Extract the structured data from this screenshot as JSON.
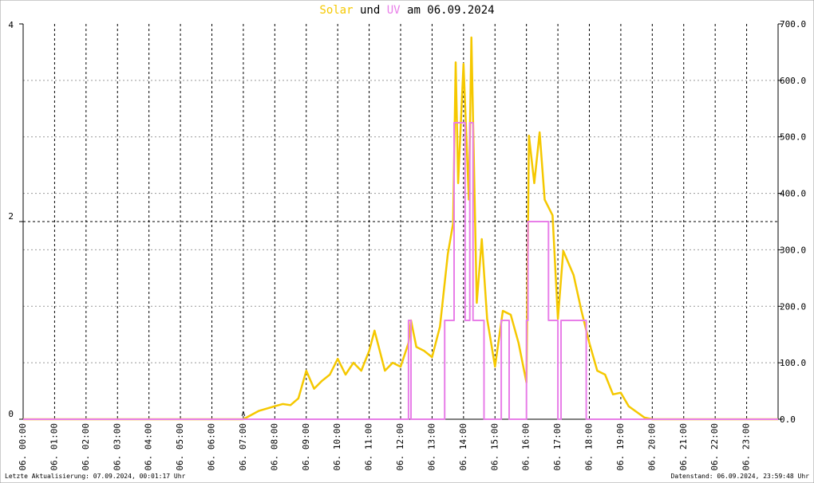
{
  "chart_data": {
    "type": "line",
    "title_conjunction": "und",
    "title_date": "am 06.09.2024",
    "xlim": [
      0,
      24
    ],
    "xticks": [
      {
        "value": 0,
        "label": "06. 00:00"
      },
      {
        "value": 1,
        "label": "06. 01:00"
      },
      {
        "value": 2,
        "label": "06. 02:00"
      },
      {
        "value": 3,
        "label": "06. 03:00"
      },
      {
        "value": 4,
        "label": "06. 04:00"
      },
      {
        "value": 5,
        "label": "06. 05:00"
      },
      {
        "value": 6,
        "label": "06. 06:00"
      },
      {
        "value": 7,
        "label": "06. 07:00"
      },
      {
        "value": 8,
        "label": "06. 08:00"
      },
      {
        "value": 9,
        "label": "06. 09:00"
      },
      {
        "value": 10,
        "label": "06. 10:00"
      },
      {
        "value": 11,
        "label": "06. 11:00"
      },
      {
        "value": 12,
        "label": "06. 12:00"
      },
      {
        "value": 13,
        "label": "06. 13:00"
      },
      {
        "value": 14,
        "label": "06. 14:00"
      },
      {
        "value": 15,
        "label": "06. 15:00"
      },
      {
        "value": 16,
        "label": "06. 16:00"
      },
      {
        "value": 17,
        "label": "06. 17:00"
      },
      {
        "value": 18,
        "label": "06. 18:00"
      },
      {
        "value": 19,
        "label": "06. 19:00"
      },
      {
        "value": 20,
        "label": "06. 20:00"
      },
      {
        "value": 21,
        "label": "06. 21:00"
      },
      {
        "value": 22,
        "label": "06. 22:00"
      },
      {
        "value": 23,
        "label": "06. 23:00"
      }
    ],
    "ylim": [
      0,
      4
    ],
    "yticks": [
      0,
      2,
      4
    ],
    "y2lim": [
      0,
      700
    ],
    "y2ticks": [
      {
        "value": 0,
        "label": "0.0"
      },
      {
        "value": 100,
        "label": "100.0"
      },
      {
        "value": 200,
        "label": "200.0"
      },
      {
        "value": 300,
        "label": "300.0"
      },
      {
        "value": 400,
        "label": "400.0"
      },
      {
        "value": 500,
        "label": "500.0"
      },
      {
        "value": 600,
        "label": "600.0"
      },
      {
        "value": 700,
        "label": "700.0"
      }
    ],
    "grid": true,
    "annotations": [
      {
        "text": "A",
        "x": 7
      }
    ],
    "series": [
      {
        "name": "Solar",
        "color": "#f5c800",
        "axis": "y2",
        "x": [
          0,
          7.0,
          7.5,
          8.0,
          8.25,
          8.5,
          8.75,
          9.0,
          9.25,
          9.5,
          9.75,
          10.0,
          10.25,
          10.5,
          10.75,
          11.0,
          11.17,
          11.5,
          11.75,
          12.0,
          12.25,
          12.33,
          12.5,
          12.75,
          13.0,
          13.25,
          13.5,
          13.67,
          13.75,
          13.83,
          14.0,
          14.17,
          14.25,
          14.42,
          14.58,
          14.75,
          15.0,
          15.25,
          15.5,
          15.75,
          16.0,
          16.08,
          16.25,
          16.42,
          16.58,
          16.83,
          17.0,
          17.17,
          17.5,
          17.75,
          18.0,
          18.25,
          18.5,
          18.75,
          19.0,
          19.25,
          19.5,
          19.75,
          20.0,
          24
        ],
        "values": [
          0,
          0,
          15,
          23,
          27,
          25,
          37,
          86,
          54,
          68,
          79,
          107,
          79,
          100,
          86,
          121,
          157,
          86,
          100,
          93,
          135,
          175,
          128,
          121,
          110,
          164,
          292,
          347,
          632,
          418,
          629,
          389,
          676,
          206,
          319,
          178,
          93,
          192,
          185,
          135,
          65,
          502,
          418,
          508,
          389,
          361,
          178,
          298,
          255,
          192,
          135,
          86,
          79,
          44,
          47,
          23,
          13,
          3,
          0,
          0
        ]
      },
      {
        "name": "UV",
        "color": "#e87ee8",
        "axis": "y",
        "x": [
          0,
          12.25,
          12.25,
          12.33,
          12.33,
          13.4,
          13.4,
          13.7,
          13.7,
          14.05,
          14.05,
          14.2,
          14.2,
          14.3,
          14.3,
          14.65,
          14.65,
          15.2,
          15.2,
          15.45,
          15.45,
          16.0,
          16.0,
          16.05,
          16.05,
          16.7,
          16.7,
          17.0,
          17.0,
          17.1,
          17.1,
          17.9,
          17.9,
          24
        ],
        "values": [
          0,
          0,
          1,
          1,
          0,
          0,
          1,
          1,
          3,
          3,
          1,
          1,
          3,
          3,
          1,
          1,
          0,
          0,
          1,
          1,
          0,
          0,
          1,
          1,
          2,
          2,
          1,
          1,
          0,
          0,
          1,
          1,
          0,
          0
        ]
      }
    ],
    "footer_left": "Letzte Aktualisierung: 07.09.2024, 00:01:17 Uhr",
    "footer_right": "Datenstand: 06.09.2024, 23:59:48 Uhr"
  }
}
